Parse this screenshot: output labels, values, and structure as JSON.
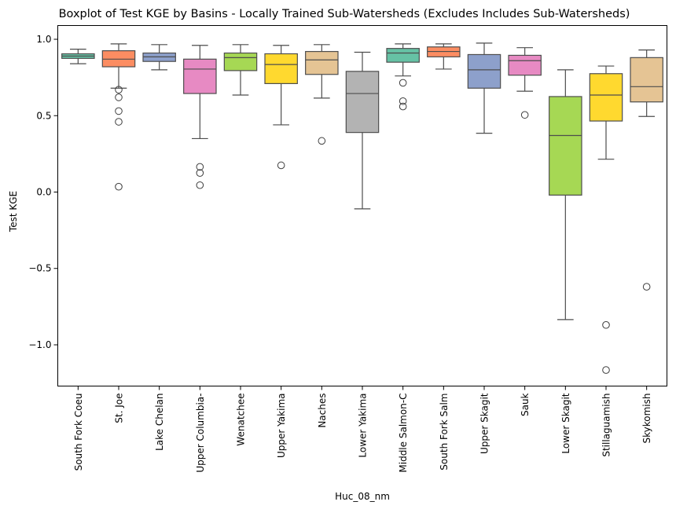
{
  "chart_data": {
    "type": "boxplot",
    "title": "Boxplot of Test KGE by Basins - Locally Trained Sub-Watersheds (Excludes Includes Sub-Watersheds)",
    "xlabel": "Huc_08_nm",
    "ylabel": "Test KGE",
    "ylim": [
      -1.27,
      1.09
    ],
    "yticks": [
      1.0,
      0.5,
      0.0,
      -0.5,
      -1.0
    ],
    "ytick_labels": [
      "1.0",
      "0.5",
      "0.0",
      "−0.5",
      "−1.0"
    ],
    "grid": false,
    "categories": [
      "South Fork Coeu",
      "St. Joe",
      "Lake Chelan",
      "Upper Columbia-",
      "Wenatchee",
      "Upper Yakima",
      "Naches",
      "Lower Yakima",
      "Middle Salmon-C",
      "South Fork Salm",
      "Upper Skagit",
      "Sauk",
      "Lower Skagit",
      "Stillaguamish",
      "Skykomish"
    ],
    "boxes": [
      {
        "name": "South Fork Coeu",
        "whisker_low": 0.84,
        "q1": 0.875,
        "median": 0.89,
        "q3": 0.905,
        "whisker_high": 0.935,
        "outliers": [],
        "color": "#66c2a5"
      },
      {
        "name": "St. Joe",
        "whisker_low": 0.68,
        "q1": 0.82,
        "median": 0.87,
        "q3": 0.925,
        "whisker_high": 0.97,
        "outliers": [
          0.67,
          0.62,
          0.53,
          0.46,
          0.035
        ],
        "color": "#fc8d62"
      },
      {
        "name": "Lake Chelan",
        "whisker_low": 0.8,
        "q1": 0.855,
        "median": 0.885,
        "q3": 0.91,
        "whisker_high": 0.965,
        "outliers": [],
        "color": "#8da0cb"
      },
      {
        "name": "Upper Columbia-",
        "whisker_low": 0.35,
        "q1": 0.645,
        "median": 0.805,
        "q3": 0.87,
        "whisker_high": 0.96,
        "outliers": [
          0.165,
          0.125,
          0.045
        ],
        "color": "#e78ac3"
      },
      {
        "name": "Wenatchee",
        "whisker_low": 0.635,
        "q1": 0.795,
        "median": 0.88,
        "q3": 0.91,
        "whisker_high": 0.965,
        "outliers": [],
        "color": "#a6d854"
      },
      {
        "name": "Upper Yakima",
        "whisker_low": 0.44,
        "q1": 0.71,
        "median": 0.835,
        "q3": 0.905,
        "whisker_high": 0.96,
        "outliers": [
          0.175
        ],
        "color": "#ffd92f"
      },
      {
        "name": "Naches",
        "whisker_low": 0.615,
        "q1": 0.77,
        "median": 0.865,
        "q3": 0.92,
        "whisker_high": 0.965,
        "outliers": [
          0.335
        ],
        "color": "#e5c494"
      },
      {
        "name": "Lower Yakima",
        "whisker_low": -0.11,
        "q1": 0.39,
        "median": 0.645,
        "q3": 0.79,
        "whisker_high": 0.915,
        "outliers": [],
        "color": "#b3b3b3"
      },
      {
        "name": "Middle Salmon-C",
        "whisker_low": 0.76,
        "q1": 0.85,
        "median": 0.91,
        "q3": 0.94,
        "whisker_high": 0.97,
        "outliers": [
          0.715,
          0.595,
          0.56
        ],
        "color": "#66c2a5"
      },
      {
        "name": "South Fork Salm",
        "whisker_low": 0.805,
        "q1": 0.885,
        "median": 0.92,
        "q3": 0.95,
        "whisker_high": 0.97,
        "outliers": [],
        "color": "#fc8d62"
      },
      {
        "name": "Upper Skagit",
        "whisker_low": 0.385,
        "q1": 0.68,
        "median": 0.8,
        "q3": 0.9,
        "whisker_high": 0.975,
        "outliers": [],
        "color": "#8da0cb"
      },
      {
        "name": "Sauk",
        "whisker_low": 0.66,
        "q1": 0.765,
        "median": 0.86,
        "q3": 0.895,
        "whisker_high": 0.945,
        "outliers": [
          0.505
        ],
        "color": "#e78ac3"
      },
      {
        "name": "Lower Skagit",
        "whisker_low": -0.835,
        "q1": -0.02,
        "median": 0.37,
        "q3": 0.625,
        "whisker_high": 0.8,
        "outliers": [],
        "color": "#a6d854"
      },
      {
        "name": "Stillaguamish",
        "whisker_low": 0.215,
        "q1": 0.465,
        "median": 0.635,
        "q3": 0.775,
        "whisker_high": 0.825,
        "outliers": [
          -0.87,
          -1.165
        ],
        "color": "#ffd92f"
      },
      {
        "name": "Skykomish",
        "whisker_low": 0.495,
        "q1": 0.59,
        "median": 0.69,
        "q3": 0.88,
        "whisker_high": 0.93,
        "outliers": [
          -0.62
        ],
        "color": "#e5c494"
      }
    ]
  }
}
